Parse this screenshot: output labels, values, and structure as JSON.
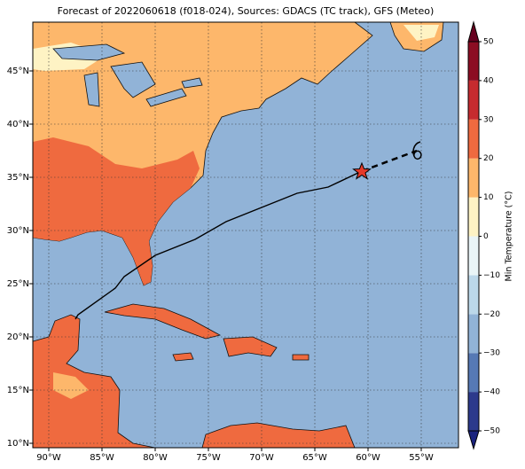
{
  "map": {
    "title": "Forecast of 2022060618 (f018-024), Sources: GDACS (TC track), GFS (Meteo)",
    "lon_ticks": [
      {
        "value": -90,
        "label": "90°W"
      },
      {
        "value": -85,
        "label": "85°W"
      },
      {
        "value": -80,
        "label": "80°W"
      },
      {
        "value": -75,
        "label": "75°W"
      },
      {
        "value": -70,
        "label": "70°W"
      },
      {
        "value": -65,
        "label": "65°W"
      },
      {
        "value": -60,
        "label": "60°W"
      },
      {
        "value": -55,
        "label": "55°W"
      }
    ],
    "lat_ticks": [
      {
        "value": 45,
        "label": "45°N"
      },
      {
        "value": 40,
        "label": "40°N"
      },
      {
        "value": 35,
        "label": "35°N"
      },
      {
        "value": 30,
        "label": "30°N"
      },
      {
        "value": 25,
        "label": "25°N"
      },
      {
        "value": 20,
        "label": "20°N"
      },
      {
        "value": 15,
        "label": "15°N"
      },
      {
        "value": 10,
        "label": "10°N"
      }
    ],
    "colorbar": {
      "label": "Min Temperature (°C)",
      "ticks": [
        {
          "value": -50,
          "label": "−50"
        },
        {
          "value": -40,
          "label": "−40"
        },
        {
          "value": -30,
          "label": "−30"
        },
        {
          "value": -20,
          "label": "−20"
        },
        {
          "value": -10,
          "label": "−10"
        },
        0,
        10,
        20,
        30,
        40,
        50
      ],
      "colors": [
        "#2c3a8c",
        "#5679b5",
        "#91b3d7",
        "#bcd8ea",
        "#eaf5f7",
        "#fef3c4",
        "#fdb76b",
        "#ef6a3f",
        "#c62b2f",
        "#8c0d23"
      ]
    }
  }
}
